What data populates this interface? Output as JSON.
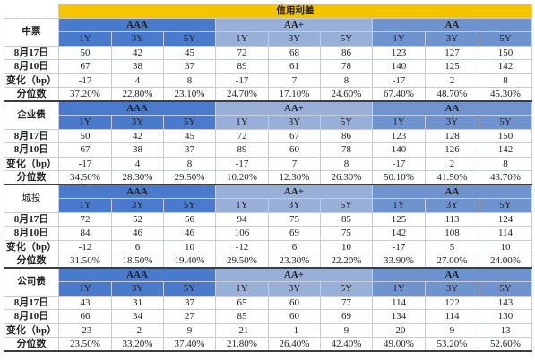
{
  "title": "信用利差",
  "groups": [
    "AAA",
    "AA+",
    "AA"
  ],
  "tenors": [
    "1Y",
    "3Y",
    "5Y"
  ],
  "sections": [
    {
      "name": "中票",
      "label_style": "bold",
      "rows": [
        {
          "label": "8月17日",
          "values": [
            "50",
            "42",
            "45",
            "72",
            "68",
            "86",
            "123",
            "127",
            "150"
          ]
        },
        {
          "label": "8月10日",
          "values": [
            "67",
            "38",
            "37",
            "89",
            "61",
            "78",
            "140",
            "125",
            "142"
          ]
        },
        {
          "label": "变化（bp）",
          "values": [
            "-17",
            "4",
            "8",
            "-17",
            "7",
            "8",
            "-17",
            "2",
            "8"
          ]
        },
        {
          "label": "分位数",
          "values": [
            "37.20%",
            "22.80%",
            "23.10%",
            "24.70%",
            "17.10%",
            "24.60%",
            "67.40%",
            "48.70%",
            "45.30%"
          ]
        }
      ]
    },
    {
      "name": "企业债",
      "label_style": "bold",
      "rows": [
        {
          "label": "8月17日",
          "values": [
            "50",
            "42",
            "45",
            "72",
            "67",
            "86",
            "123",
            "128",
            "150"
          ]
        },
        {
          "label": "8月10日",
          "values": [
            "67",
            "38",
            "37",
            "89",
            "60",
            "78",
            "140",
            "126",
            "142"
          ]
        },
        {
          "label": "变化（bp）",
          "values": [
            "-17",
            "4",
            "8",
            "-17",
            "7",
            "8",
            "-17",
            "2",
            "8"
          ]
        },
        {
          "label": "分位数",
          "values": [
            "34.50%",
            "28.30%",
            "29.50%",
            "10.20%",
            "12.30%",
            "26.30%",
            "50.10%",
            "41.50%",
            "43.70%"
          ]
        }
      ]
    },
    {
      "name": "城投",
      "label_style": "plain",
      "rows": [
        {
          "label": "8月17日",
          "values": [
            "72",
            "52",
            "56",
            "94",
            "75",
            "85",
            "125",
            "113",
            "124"
          ]
        },
        {
          "label": "8月10日",
          "values": [
            "84",
            "46",
            "46",
            "106",
            "69",
            "75",
            "142",
            "108",
            "114"
          ]
        },
        {
          "label": "变化（bp）",
          "values": [
            "-12",
            "6",
            "10",
            "-12",
            "6",
            "10",
            "-17",
            "5",
            "10"
          ]
        },
        {
          "label": "分位数",
          "values": [
            "31.50%",
            "18.50%",
            "19.40%",
            "29.50%",
            "23.30%",
            "22.20%",
            "33.90%",
            "27.00%",
            "24.00%"
          ]
        }
      ]
    },
    {
      "name": "公司债",
      "label_style": "bold",
      "rows": [
        {
          "label": "8月17日",
          "values": [
            "43",
            "31",
            "37",
            "65",
            "60",
            "77",
            "114",
            "122",
            "143"
          ]
        },
        {
          "label": "8月10日",
          "values": [
            "66",
            "34",
            "27",
            "85",
            "60",
            "69",
            "134",
            "114",
            "130"
          ]
        },
        {
          "label": "变化（bp）",
          "values": [
            "-23",
            "-2",
            "9",
            "-21",
            "-1",
            "9",
            "-20",
            "9",
            "13"
          ]
        },
        {
          "label": "分位数",
          "values": [
            "23.50%",
            "33.20%",
            "37.40%",
            "21.80%",
            "26.40%",
            "42.40%",
            "49.00%",
            "53.20%",
            "52.60%"
          ]
        }
      ]
    }
  ]
}
